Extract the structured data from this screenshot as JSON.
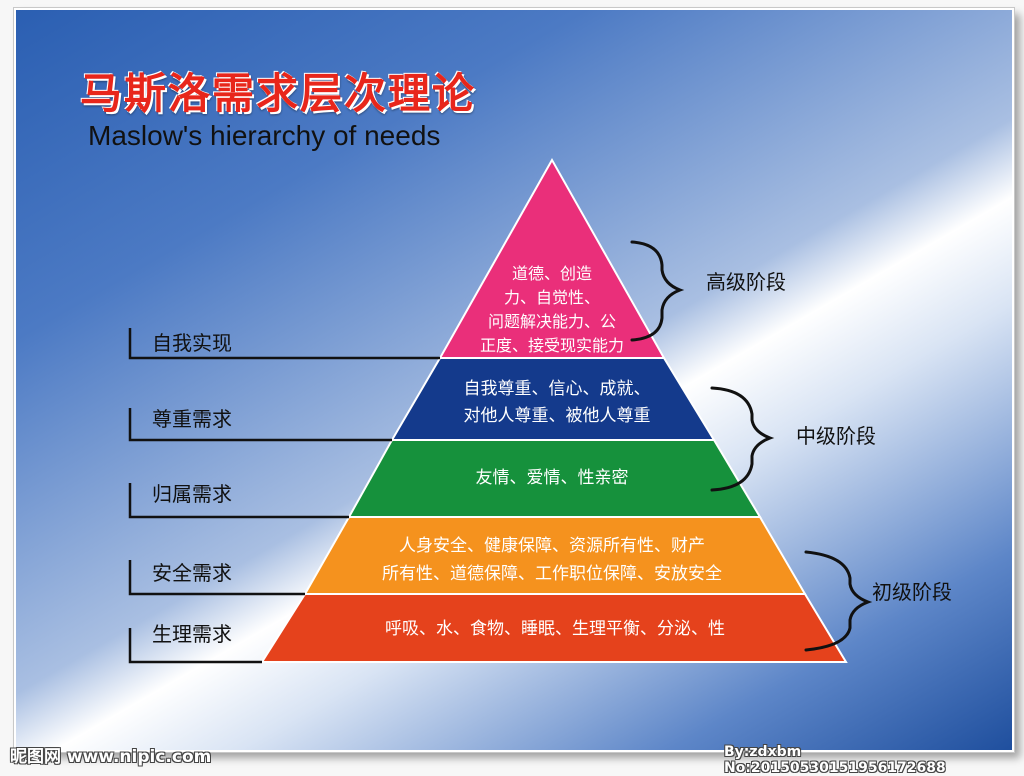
{
  "title": {
    "cn": "马斯洛需求层次理论",
    "en": "Maslow's hierarchy of needs"
  },
  "levels": [
    {
      "text": "道德、创造\n力、自觉性、\n问题解决能力、公\n正度、接受现实能力",
      "color": "#ea2f7a"
    },
    {
      "text": "自我尊重、信心、成就、\n对他人尊重、被他人尊重",
      "color": "#143a8c"
    },
    {
      "text": "友情、爱情、性亲密",
      "color": "#16913c"
    },
    {
      "text": "人身安全、健康保障、资源所有性、财产\n所有性、道德保障、工作职位保障、安放安全",
      "color": "#f5921e"
    },
    {
      "text": "呼吸、水、食物、睡眠、生理平衡、分泌、性",
      "color": "#e5421c"
    }
  ],
  "side_labels": [
    "自我实现",
    "尊重需求",
    "归属需求",
    "安全需求",
    "生理需求"
  ],
  "stages": [
    "高级阶段",
    "中级阶段",
    "初级阶段"
  ],
  "watermark": {
    "left": "昵图网 www.nipic.com",
    "right": "By:zdxbm No:20150530151956172688"
  }
}
